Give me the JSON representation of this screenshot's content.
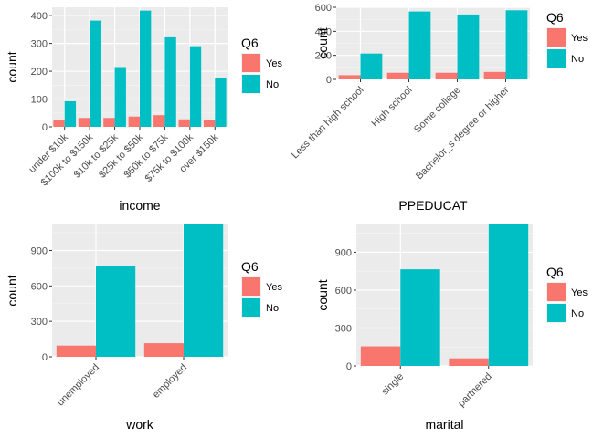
{
  "chart_data": [
    {
      "type": "bar",
      "xlabel": "income",
      "ylabel": "count",
      "categories": [
        "under $10k",
        "$100k to $150k",
        "$10k to $25k",
        "$25k to $50k",
        "$50k to $75k",
        "$75k to $100k",
        "over $150k"
      ],
      "series": [
        {
          "name": "Yes",
          "values": [
            25,
            32,
            32,
            37,
            42,
            27,
            25
          ]
        },
        {
          "name": "No",
          "values": [
            92,
            382,
            215,
            418,
            322,
            290,
            174
          ]
        }
      ],
      "ylim": [
        0,
        430
      ],
      "yticks": [
        0,
        100,
        200,
        300,
        400
      ],
      "legend": {
        "title": "Q6",
        "position": "right"
      },
      "colors": {
        "Yes": "#F8766D",
        "No": "#00BFC4"
      },
      "grid": true
    },
    {
      "type": "bar",
      "xlabel": "PPEDUCAT",
      "ylabel": "count",
      "categories": [
        "Less than high school",
        "High school",
        "Some college",
        "Bachelor_s degree or higher"
      ],
      "series": [
        {
          "name": "Yes",
          "values": [
            35,
            55,
            55,
            62
          ]
        },
        {
          "name": "No",
          "values": [
            215,
            565,
            540,
            575
          ]
        }
      ],
      "ylim": [
        0,
        600
      ],
      "yticks": [
        0,
        200,
        400,
        600
      ],
      "legend": {
        "title": "Q6",
        "position": "right"
      },
      "colors": {
        "Yes": "#F8766D",
        "No": "#00BFC4"
      },
      "grid": true
    },
    {
      "type": "bar",
      "xlabel": "work",
      "ylabel": "count",
      "categories": [
        "unemployed",
        "employed"
      ],
      "series": [
        {
          "name": "Yes",
          "values": [
            95,
            115
          ]
        },
        {
          "name": "No",
          "values": [
            765,
            1120
          ]
        }
      ],
      "ylim": [
        0,
        1120
      ],
      "yticks": [
        0,
        300,
        600,
        900
      ],
      "legend": {
        "title": "Q6",
        "position": "right"
      },
      "colors": {
        "Yes": "#F8766D",
        "No": "#00BFC4"
      },
      "grid": true
    },
    {
      "type": "bar",
      "xlabel": "marital",
      "ylabel": "count",
      "categories": [
        "single",
        "partnered"
      ],
      "series": [
        {
          "name": "Yes",
          "values": [
            155,
            60
          ]
        },
        {
          "name": "No",
          "values": [
            765,
            1120
          ]
        }
      ],
      "ylim": [
        0,
        1120
      ],
      "yticks": [
        0,
        300,
        600,
        900
      ],
      "legend": {
        "title": "Q6",
        "position": "right"
      },
      "colors": {
        "Yes": "#F8766D",
        "No": "#00BFC4"
      },
      "grid": true
    }
  ]
}
